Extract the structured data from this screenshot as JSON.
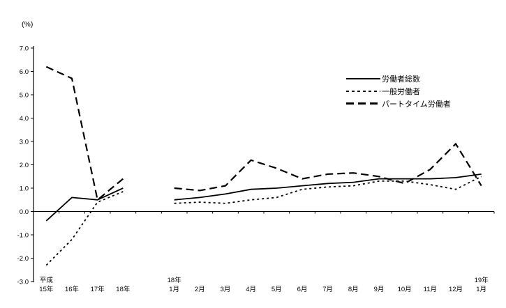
{
  "unit_label": "(%)",
  "chart_data": {
    "type": "line",
    "title": "",
    "unit_label": "(%)",
    "ylim": [
      -3.0,
      7.0
    ],
    "ytick_step": 1.0,
    "ytick_labels": [
      "7.0",
      "6.0",
      "5.0",
      "4.0",
      "3.0",
      "2.0",
      "1.0",
      "0.0",
      "-1.0",
      "-2.0",
      "-3.0"
    ],
    "grid": false,
    "legend_position": "upper-right-inside",
    "axis_color": "#000000",
    "background_color": "#ffffff",
    "categories": [
      {
        "top": "平成",
        "bottom": "15年"
      },
      {
        "top": "",
        "bottom": "16年"
      },
      {
        "top": "",
        "bottom": "17年"
      },
      {
        "top": "",
        "bottom": "18年"
      },
      {
        "top": "",
        "bottom": ""
      },
      {
        "top": "18年",
        "bottom": "1月"
      },
      {
        "top": "",
        "bottom": "2月"
      },
      {
        "top": "",
        "bottom": "3月"
      },
      {
        "top": "",
        "bottom": "4月"
      },
      {
        "top": "",
        "bottom": "5月"
      },
      {
        "top": "",
        "bottom": "6月"
      },
      {
        "top": "",
        "bottom": "7月"
      },
      {
        "top": "",
        "bottom": "8月"
      },
      {
        "top": "",
        "bottom": "9月"
      },
      {
        "top": "",
        "bottom": "10月"
      },
      {
        "top": "",
        "bottom": "11月"
      },
      {
        "top": "",
        "bottom": "12月"
      },
      {
        "top": "19年",
        "bottom": "1月"
      }
    ],
    "series": [
      {
        "name": "労働者総数",
        "style": "solid",
        "color": "#000000",
        "values": [
          -0.4,
          0.6,
          0.5,
          1.0,
          null,
          0.5,
          0.6,
          0.75,
          0.95,
          1.0,
          1.1,
          1.2,
          1.25,
          1.4,
          1.4,
          1.4,
          1.45,
          1.6
        ]
      },
      {
        "name": "一般労働者",
        "style": "dotted",
        "color": "#000000",
        "values": [
          -2.3,
          -1.2,
          0.4,
          0.85,
          null,
          0.35,
          0.4,
          0.35,
          0.5,
          0.6,
          0.95,
          1.05,
          1.1,
          1.3,
          1.3,
          1.15,
          0.95,
          1.5
        ]
      },
      {
        "name": "パートタイム労働者",
        "style": "long-dash",
        "color": "#000000",
        "values": [
          6.2,
          5.7,
          0.5,
          1.4,
          null,
          1.0,
          0.9,
          1.1,
          2.2,
          1.85,
          1.4,
          1.6,
          1.65,
          1.5,
          1.2,
          1.8,
          2.9,
          1.1
        ]
      }
    ]
  }
}
